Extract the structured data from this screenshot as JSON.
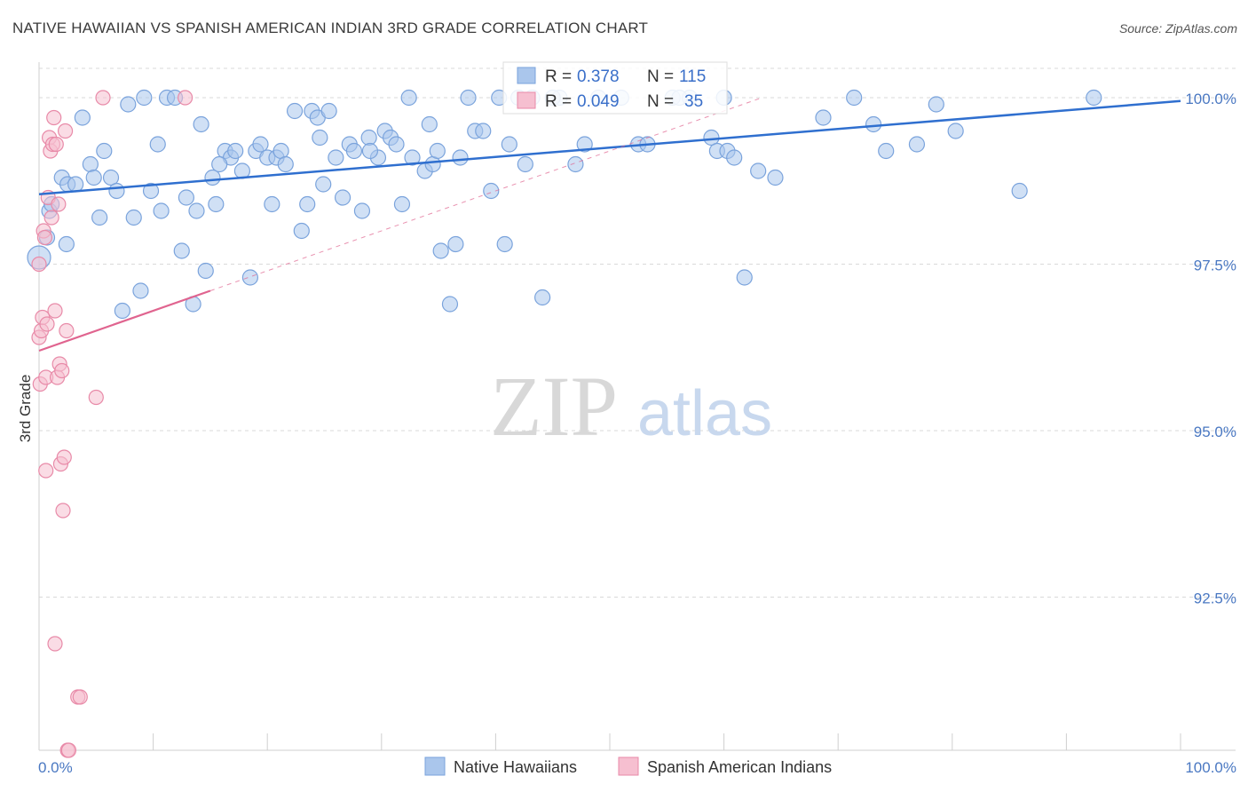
{
  "title": "NATIVE HAWAIIAN VS SPANISH AMERICAN INDIAN 3RD GRADE CORRELATION CHART",
  "source": "Source: ZipAtlas.com",
  "watermark": {
    "zip": "ZIP",
    "atlas": "atlas"
  },
  "colors": {
    "blue_fill": "#aac6ec",
    "blue_stroke": "#7aa3dc",
    "blue_line": "#2f6fcf",
    "pink_fill": "#f6bfd0",
    "pink_stroke": "#e88aa8",
    "pink_line": "#e0648f",
    "tick_text": "#4a78c2",
    "grid": "#d9d9d9"
  },
  "legend_box": {
    "rows": [
      {
        "r_label": "R =",
        "r_value": "0.378",
        "n_label": "N =",
        "n_value": "115",
        "series": "blue"
      },
      {
        "r_label": "R =",
        "r_value": "0.049",
        "n_label": "N =",
        "n_value": "35",
        "series": "pink"
      }
    ]
  },
  "chart_data": {
    "type": "scatter",
    "title": "NATIVE HAWAIIAN VS SPANISH AMERICAN INDIAN 3RD GRADE CORRELATION CHART",
    "xlabel": "",
    "ylabel": "3rd Grade",
    "xlim": [
      0,
      100
    ],
    "ylim": [
      90.2,
      100.4
    ],
    "x_tick_labels": [
      "0.0%",
      "100.0%"
    ],
    "y_ticks": [
      92.5,
      95.0,
      97.5,
      100.0
    ],
    "y_tick_labels": [
      "92.5%",
      "95.0%",
      "97.5%",
      "100.0%"
    ],
    "grid": "horizontal dashed",
    "legend": {
      "position": "bottom-center",
      "entries": [
        "Native Hawaiians",
        "Spanish American Indians"
      ]
    },
    "series": [
      {
        "name": "Native Hawaiians",
        "color": "#aac6ec",
        "trend": {
          "x": [
            0,
            100
          ],
          "y": [
            98.55,
            99.95
          ],
          "style": "solid"
        },
        "points": [
          [
            0.0,
            97.6
          ],
          [
            0.7,
            97.9
          ],
          [
            0.9,
            98.3
          ],
          [
            1.1,
            98.4
          ],
          [
            2.0,
            98.8
          ],
          [
            2.4,
            97.8
          ],
          [
            2.5,
            98.7
          ],
          [
            3.2,
            98.7
          ],
          [
            3.8,
            99.7
          ],
          [
            4.5,
            99.0
          ],
          [
            4.8,
            98.8
          ],
          [
            5.3,
            98.2
          ],
          [
            5.7,
            99.2
          ],
          [
            6.3,
            98.8
          ],
          [
            6.8,
            98.6
          ],
          [
            7.3,
            96.8
          ],
          [
            7.8,
            99.9
          ],
          [
            8.3,
            98.2
          ],
          [
            8.9,
            97.1
          ],
          [
            9.2,
            100.0
          ],
          [
            9.8,
            98.6
          ],
          [
            10.4,
            99.3
          ],
          [
            10.7,
            98.3
          ],
          [
            11.2,
            100.0
          ],
          [
            11.9,
            100.0
          ],
          [
            12.5,
            97.7
          ],
          [
            12.9,
            98.5
          ],
          [
            13.5,
            96.9
          ],
          [
            13.8,
            98.3
          ],
          [
            14.2,
            99.6
          ],
          [
            14.6,
            97.4
          ],
          [
            15.2,
            98.8
          ],
          [
            15.5,
            98.4
          ],
          [
            16.3,
            99.2
          ],
          [
            16.8,
            99.1
          ],
          [
            17.2,
            99.2
          ],
          [
            17.8,
            98.9
          ],
          [
            18.5,
            97.3
          ],
          [
            19.0,
            99.2
          ],
          [
            19.4,
            99.3
          ],
          [
            20.0,
            99.1
          ],
          [
            20.4,
            98.4
          ],
          [
            20.8,
            99.1
          ],
          [
            21.2,
            99.2
          ],
          [
            21.6,
            99.0
          ],
          [
            22.4,
            99.8
          ],
          [
            23.0,
            98.0
          ],
          [
            23.5,
            98.4
          ],
          [
            23.9,
            99.8
          ],
          [
            24.4,
            99.7
          ],
          [
            24.6,
            99.4
          ],
          [
            24.9,
            98.7
          ],
          [
            25.4,
            99.8
          ],
          [
            26.0,
            99.1
          ],
          [
            26.6,
            98.5
          ],
          [
            27.2,
            99.3
          ],
          [
            27.6,
            99.2
          ],
          [
            28.3,
            98.3
          ],
          [
            28.9,
            99.4
          ],
          [
            29.7,
            99.1
          ],
          [
            30.3,
            99.5
          ],
          [
            30.8,
            99.4
          ],
          [
            31.3,
            99.3
          ],
          [
            31.8,
            98.4
          ],
          [
            32.4,
            100.0
          ],
          [
            32.7,
            99.1
          ],
          [
            33.8,
            98.9
          ],
          [
            34.2,
            99.6
          ],
          [
            34.5,
            99.0
          ],
          [
            34.9,
            99.2
          ],
          [
            35.2,
            97.7
          ],
          [
            36.0,
            96.9
          ],
          [
            36.5,
            97.8
          ],
          [
            36.9,
            99.1
          ],
          [
            37.6,
            100.0
          ],
          [
            38.2,
            99.5
          ],
          [
            38.9,
            99.5
          ],
          [
            39.6,
            98.6
          ],
          [
            40.3,
            100.0
          ],
          [
            40.8,
            97.8
          ],
          [
            41.2,
            99.3
          ],
          [
            42.0,
            100.0
          ],
          [
            42.6,
            99.0
          ],
          [
            43.2,
            100.0
          ],
          [
            44.1,
            97.0
          ],
          [
            45.6,
            100.0
          ],
          [
            47.0,
            99.0
          ],
          [
            47.8,
            99.3
          ],
          [
            49.0,
            100.0
          ],
          [
            51.0,
            100.0
          ],
          [
            52.5,
            99.3
          ],
          [
            53.3,
            99.3
          ],
          [
            55.5,
            100.0
          ],
          [
            57.0,
            100.0
          ],
          [
            58.9,
            99.4
          ],
          [
            59.4,
            99.2
          ],
          [
            60.3,
            99.2
          ],
          [
            60.9,
            99.1
          ],
          [
            61.8,
            97.3
          ],
          [
            63.0,
            98.9
          ],
          [
            64.5,
            98.8
          ],
          [
            68.7,
            99.7
          ],
          [
            71.4,
            100.0
          ],
          [
            73.1,
            99.6
          ],
          [
            74.2,
            99.2
          ],
          [
            76.9,
            99.3
          ],
          [
            78.6,
            99.9
          ],
          [
            80.3,
            99.5
          ],
          [
            85.9,
            98.6
          ],
          [
            92.4,
            100.0
          ],
          [
            56.1,
            100.0
          ],
          [
            29.0,
            99.2
          ],
          [
            45.0,
            100.0
          ],
          [
            15.8,
            99.0
          ],
          [
            60.0,
            100.0
          ]
        ]
      },
      {
        "name": "Spanish American Indians",
        "color": "#f6bfd0",
        "trend": {
          "x": [
            0,
            15
          ],
          "y": [
            96.2,
            97.1
          ],
          "style": "solid"
        },
        "trend_extension": {
          "x": [
            15,
            100
          ],
          "y": [
            97.1,
            102.2
          ],
          "style": "dashed"
        },
        "points": [
          [
            0.0,
            97.5
          ],
          [
            0.0,
            96.4
          ],
          [
            0.1,
            95.7
          ],
          [
            0.2,
            96.5
          ],
          [
            0.3,
            96.7
          ],
          [
            0.4,
            98.0
          ],
          [
            0.5,
            97.9
          ],
          [
            0.6,
            95.8
          ],
          [
            0.7,
            96.6
          ],
          [
            0.8,
            98.5
          ],
          [
            0.9,
            99.4
          ],
          [
            1.0,
            99.2
          ],
          [
            1.1,
            98.2
          ],
          [
            1.2,
            99.3
          ],
          [
            1.3,
            99.7
          ],
          [
            1.4,
            96.8
          ],
          [
            1.5,
            99.3
          ],
          [
            1.6,
            95.8
          ],
          [
            1.7,
            98.4
          ],
          [
            1.8,
            96.0
          ],
          [
            1.9,
            94.5
          ],
          [
            2.0,
            95.9
          ],
          [
            2.1,
            93.8
          ],
          [
            2.2,
            94.6
          ],
          [
            2.3,
            99.5
          ],
          [
            2.4,
            96.5
          ],
          [
            2.5,
            90.2
          ],
          [
            2.6,
            90.2
          ],
          [
            1.4,
            91.8
          ],
          [
            3.4,
            91.0
          ],
          [
            3.6,
            91.0
          ],
          [
            5.0,
            95.5
          ],
          [
            5.6,
            100.0
          ],
          [
            12.8,
            100.0
          ],
          [
            0.6,
            94.4
          ]
        ]
      }
    ]
  }
}
